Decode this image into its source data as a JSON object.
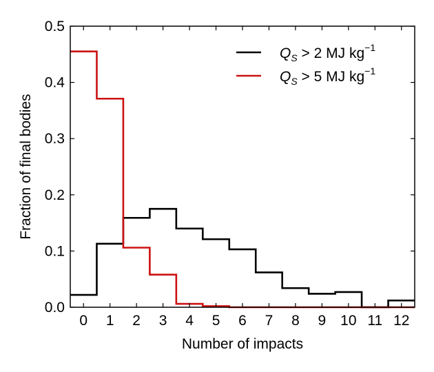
{
  "chart_data": {
    "type": "step",
    "xlabel": "Number of impacts",
    "ylabel": "Fraction of final bodies",
    "xlim": [
      -0.5,
      12.5
    ],
    "ylim": [
      0.0,
      0.5
    ],
    "x_ticks": [
      0,
      1,
      2,
      3,
      4,
      5,
      6,
      7,
      8,
      9,
      10,
      11,
      12
    ],
    "y_ticks": [
      0.0,
      0.1,
      0.2,
      0.3,
      0.4,
      0.5
    ],
    "x_tick_labels": [
      "0",
      "1",
      "2",
      "3",
      "4",
      "5",
      "6",
      "7",
      "8",
      "9",
      "10",
      "11",
      "12"
    ],
    "y_tick_labels": [
      "0.0",
      "0.1",
      "0.2",
      "0.3",
      "0.4",
      "0.5"
    ],
    "grid": false,
    "legend_position": "top-right",
    "categories": [
      0,
      1,
      2,
      3,
      4,
      5,
      6,
      7,
      8,
      9,
      10,
      11,
      12
    ],
    "series": [
      {
        "name": "Q_S > 2 MJ kg^-1",
        "legend_base": "Q",
        "legend_sub": "S",
        "legend_rest": " > 2 MJ kg",
        "legend_sup": "−1",
        "color": "#000000",
        "values": [
          0.022,
          0.113,
          0.159,
          0.175,
          0.14,
          0.121,
          0.103,
          0.062,
          0.034,
          0.024,
          0.027,
          0.0,
          0.012
        ]
      },
      {
        "name": "Q_S > 5 MJ kg^-1",
        "legend_base": "Q",
        "legend_sub": "S",
        "legend_rest": " > 5 MJ kg",
        "legend_sup": "−1",
        "color": "#cc1111",
        "values": [
          0.455,
          0.371,
          0.106,
          0.058,
          0.006,
          0.002,
          0.0,
          0.0,
          0.0,
          0.0,
          0.0,
          0.0,
          0.0
        ]
      }
    ]
  }
}
